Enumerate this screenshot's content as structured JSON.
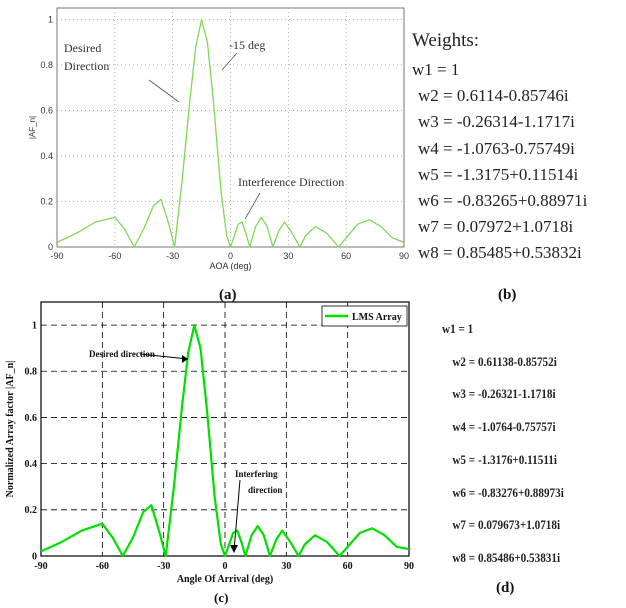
{
  "chart_data": [
    {
      "type": "line",
      "panel": "(a)",
      "xlabel": "AOA (deg)",
      "ylabel": "|AF_n|",
      "xlim": [
        -90,
        90
      ],
      "ylim": [
        0,
        1.05
      ],
      "xticks": [
        "-90",
        "-60",
        "-30",
        "0",
        "30",
        "60",
        "90"
      ],
      "yticks": [
        "0",
        "0.2",
        "0.4",
        "0.6",
        "0.8",
        "1"
      ],
      "grid": true,
      "annotations": [
        "Desired Direction",
        "-15 deg",
        "Interference Direction"
      ],
      "series": [
        {
          "x": [
            -90,
            -80,
            -70,
            -60,
            -55,
            -50,
            -45,
            -40,
            -36,
            -32,
            -29,
            -25,
            -21,
            -18,
            -15,
            -12,
            -9,
            -5,
            -2,
            0,
            2,
            4,
            6,
            8,
            10,
            13,
            16,
            19,
            22,
            25,
            28,
            32,
            36,
            39,
            44,
            50,
            56,
            61,
            66,
            72,
            78,
            84,
            90
          ],
          "y": [
            0.02,
            0.06,
            0.11,
            0.13,
            0.08,
            0.0,
            0.08,
            0.18,
            0.21,
            0.1,
            0.0,
            0.3,
            0.65,
            0.88,
            1.0,
            0.9,
            0.65,
            0.25,
            0.05,
            0.0,
            0.05,
            0.1,
            0.11,
            0.06,
            0.0,
            0.09,
            0.13,
            0.09,
            0.0,
            0.07,
            0.11,
            0.06,
            0.0,
            0.05,
            0.09,
            0.06,
            0.0,
            0.05,
            0.1,
            0.12,
            0.09,
            0.04,
            0.02
          ],
          "color": "#7ed957"
        }
      ]
    },
    {
      "type": "line",
      "panel": "(c)",
      "xlabel": "Angle Of Arrival (deg)",
      "ylabel": "Normalized Array factor |AF_n|",
      "xlim": [
        -90,
        90
      ],
      "ylim": [
        0,
        1.1
      ],
      "xticks": [
        "-90",
        "-60",
        "-30",
        "0",
        "30",
        "60",
        "90"
      ],
      "yticks": [
        "0",
        "0.2",
        "0.4",
        "0.6",
        "0.8",
        "1"
      ],
      "grid": true,
      "legend": "top-right",
      "annotations": [
        "Desired direction",
        "Interfering direction"
      ],
      "series": [
        {
          "name": "LMS Array",
          "x": [
            -90,
            -80,
            -70,
            -60,
            -55,
            -50,
            -45,
            -40,
            -36,
            -32,
            -29,
            -25,
            -21,
            -18,
            -15,
            -12,
            -9,
            -5,
            -2,
            0,
            2,
            4,
            6,
            8,
            10,
            13,
            16,
            19,
            22,
            25,
            28,
            32,
            36,
            39,
            44,
            50,
            56,
            61,
            66,
            72,
            78,
            84,
            90
          ],
          "y": [
            0.02,
            0.06,
            0.11,
            0.14,
            0.08,
            0.0,
            0.08,
            0.19,
            0.22,
            0.1,
            0.0,
            0.3,
            0.65,
            0.88,
            1.0,
            0.9,
            0.65,
            0.25,
            0.05,
            0.0,
            0.05,
            0.1,
            0.11,
            0.06,
            0.0,
            0.09,
            0.13,
            0.09,
            0.0,
            0.07,
            0.11,
            0.06,
            0.0,
            0.05,
            0.09,
            0.06,
            0.0,
            0.05,
            0.1,
            0.12,
            0.09,
            0.04,
            0.03
          ],
          "color": "#00e000"
        }
      ]
    }
  ],
  "panel_b": {
    "title": "Weights:",
    "weights": [
      "w1 = 1",
      "w2 = 0.6114-0.85746i",
      "w3 = -0.26314-1.1717i",
      "w4 = -1.0763-0.75749i",
      "w5 = -1.3175+0.11514i",
      "w6 = -0.83265+0.88971i",
      "w7 = 0.07972+1.0718i",
      "w8 = 0.85485+0.53832i"
    ]
  },
  "panel_d": {
    "weights": [
      "w1 = 1",
      "w2 = 0.61138-0.85752i",
      "w3 = -0.26321-1.1718i",
      "w4 = -1.0764-0.75757i",
      "w5 = -1.3176+0.11511i",
      "w6 = -0.83276+0.88973i",
      "w7 = 0.079673+1.0718i",
      "w8 = 0.85486+0.53831i"
    ]
  },
  "captions": {
    "a": "(a)",
    "b": "(b)",
    "c": "(c)",
    "d": "(d)"
  }
}
